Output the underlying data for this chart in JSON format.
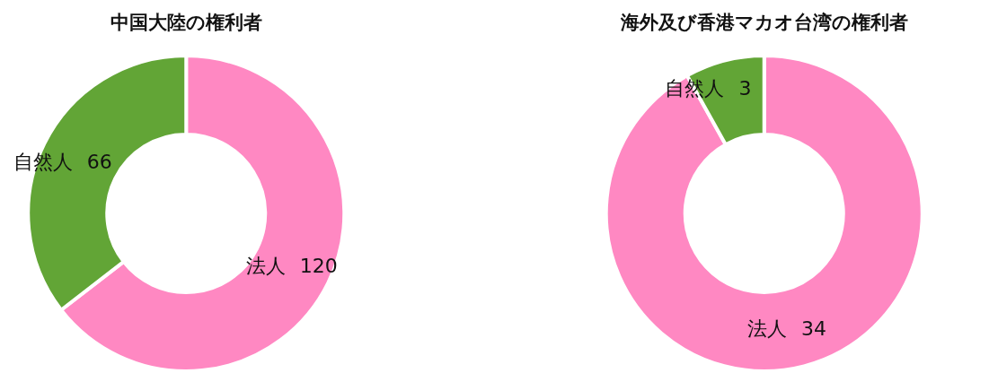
{
  "chart_data": [
    {
      "type": "donut",
      "title": "中国大陸の権利者",
      "categories": [
        "法人",
        "自然人"
      ],
      "values": [
        120,
        66
      ],
      "colors": [
        "#ff88c2",
        "#62a536"
      ],
      "data_labels": true
    },
    {
      "type": "donut",
      "title": "海外及び香港マカオ台湾の権利者",
      "categories": [
        "法人",
        "自然人"
      ],
      "values": [
        34,
        3
      ],
      "colors": [
        "#ff88c2",
        "#62a536"
      ],
      "data_labels": true
    }
  ]
}
